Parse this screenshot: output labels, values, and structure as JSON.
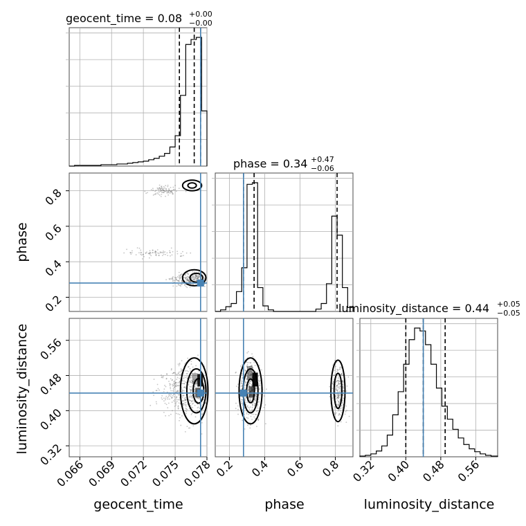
{
  "chart_data": {
    "type": "corner",
    "params": [
      "geocent_time",
      "phase",
      "luminosity_distance"
    ],
    "titles": {
      "geocent_time": {
        "label": "geocent_time = 0.08",
        "plus": "+0.00",
        "minus": "−0.00"
      },
      "phase": {
        "label": "phase = 0.34",
        "plus": "+0.47",
        "minus": "−0.06"
      },
      "luminosity_distance": {
        "label": "luminosity_distance = 0.44",
        "plus": "+0.05",
        "minus": "−0.05"
      }
    },
    "ranges": {
      "geocent_time": [
        0.065,
        0.078
      ],
      "phase": [
        0.12,
        0.9
      ],
      "luminosity_distance": [
        0.295,
        0.61
      ]
    },
    "ticks": {
      "geocent_time": [
        "0.066",
        "0.069",
        "0.072",
        "0.075",
        "0.078"
      ],
      "phase": [
        "0.2",
        "0.4",
        "0.6",
        "0.8"
      ],
      "luminosity_distance": [
        "0.32",
        "0.40",
        "0.48",
        "0.56"
      ]
    },
    "truths": {
      "geocent_time": 0.0774,
      "phase": 0.28,
      "luminosity_distance": 0.44
    },
    "quantiles": {
      "geocent_time": [
        0.0754,
        0.0768,
        0.0774
      ],
      "phase": [
        0.28,
        0.34,
        0.81
      ],
      "luminosity_distance": [
        0.4,
        0.44,
        0.49
      ]
    },
    "hist_1d": {
      "geocent_time": {
        "edges": [
          0.065,
          0.0655,
          0.066,
          0.0665,
          0.067,
          0.0675,
          0.068,
          0.0685,
          0.069,
          0.0695,
          0.07,
          0.0705,
          0.071,
          0.0715,
          0.072,
          0.0725,
          0.073,
          0.0735,
          0.074,
          0.0745,
          0.075,
          0.0755,
          0.076,
          0.0765,
          0.077,
          0.0775,
          0.078
        ],
        "counts": [
          0,
          1,
          1,
          1,
          1,
          1,
          2,
          2,
          2,
          3,
          3,
          4,
          5,
          6,
          7,
          9,
          11,
          14,
          18,
          27,
          43,
          100,
          172,
          179,
          182,
          78
        ]
      },
      "phase": {
        "edges": [
          0.12,
          0.15,
          0.18,
          0.21,
          0.24,
          0.27,
          0.3,
          0.33,
          0.36,
          0.39,
          0.42,
          0.45,
          0.48,
          0.51,
          0.54,
          0.57,
          0.6,
          0.63,
          0.66,
          0.69,
          0.72,
          0.75,
          0.78,
          0.81,
          0.84,
          0.87,
          0.9
        ],
        "counts": [
          0,
          2,
          6,
          10,
          25,
          55,
          160,
          162,
          30,
          7,
          2,
          0,
          0,
          0,
          0,
          0,
          0,
          0,
          0,
          3,
          10,
          35,
          120,
          96,
          30,
          5
        ]
      },
      "luminosity_distance": {
        "edges": [
          0.295,
          0.3075,
          0.32,
          0.3325,
          0.345,
          0.3575,
          0.37,
          0.3825,
          0.395,
          0.4075,
          0.42,
          0.4325,
          0.445,
          0.4575,
          0.47,
          0.4825,
          0.495,
          0.5075,
          0.52,
          0.5325,
          0.545,
          0.5575,
          0.57,
          0.5825,
          0.595,
          0.61
        ],
        "counts": [
          1,
          2,
          4,
          8,
          15,
          30,
          58,
          90,
          128,
          162,
          178,
          174,
          155,
          128,
          95,
          70,
          52,
          38,
          26,
          17,
          11,
          7,
          4,
          2,
          1
        ]
      }
    },
    "pairs": [
      {
        "x": "geocent_time",
        "y": "phase"
      },
      {
        "x": "geocent_time",
        "y": "luminosity_distance"
      },
      {
        "x": "phase",
        "y": "luminosity_distance"
      }
    ],
    "grid": true,
    "colors": {
      "truth": "#4682b4",
      "hist": "#000000",
      "samples": "#555555"
    }
  }
}
